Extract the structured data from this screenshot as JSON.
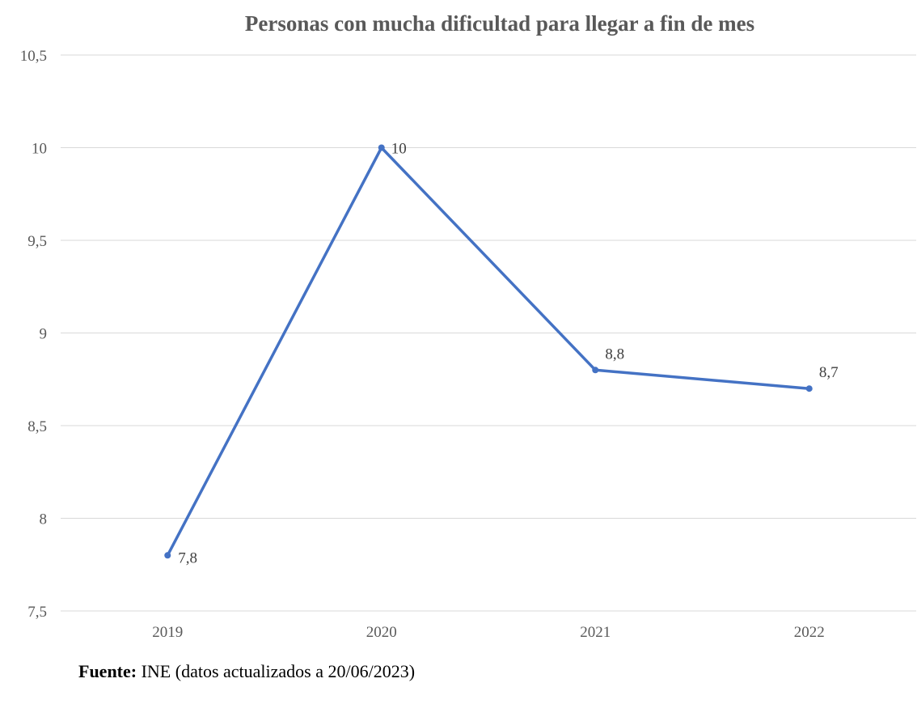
{
  "chart_data": {
    "type": "line",
    "title": "Personas con mucha dificultad para llegar a fin de mes",
    "categories": [
      "2019",
      "2020",
      "2021",
      "2022"
    ],
    "series": [
      {
        "name": "Personas con mucha dificultad para llegar a fin de mes",
        "values": [
          7.8,
          10,
          8.8,
          8.7
        ],
        "data_labels": [
          "7,8",
          "10",
          "8,8",
          "8,7"
        ]
      }
    ],
    "ylim": [
      7.5,
      10.5
    ],
    "y_ticks": [
      7.5,
      8,
      8.5,
      9,
      9.5,
      10,
      10.5
    ],
    "y_tick_labels": [
      "7,5",
      "8",
      "8,5",
      "9",
      "9,5",
      "10",
      "10,5"
    ],
    "xlabel": "",
    "ylabel": "",
    "grid": true,
    "legend": "none"
  },
  "colors": {
    "line": "#4472c4",
    "grid": "#d9d9d9",
    "title": "#595959",
    "tick": "#595959",
    "label": "#404040"
  },
  "source": {
    "label": "Fuente:",
    "text": " INE (datos actualizados a 20/06/2023)"
  }
}
